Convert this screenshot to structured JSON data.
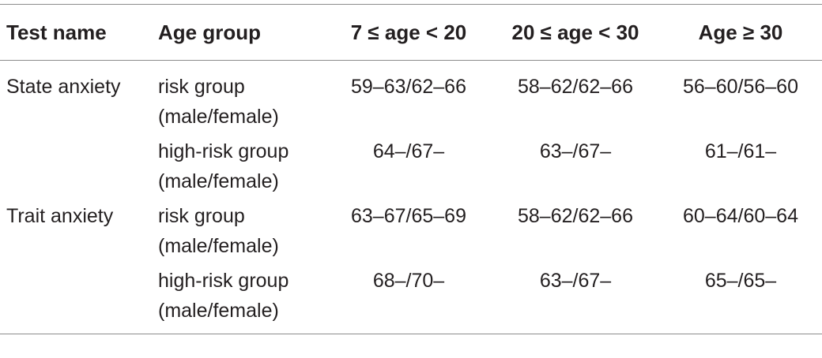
{
  "table": {
    "headers": [
      "Test name",
      "Age group",
      "7 ≤ age < 20",
      "20 ≤ age < 30",
      "Age ≥ 30"
    ],
    "rows": [
      {
        "test_name": "State anxiety",
        "group_line1": "risk group",
        "group_line2": "(male/female)",
        "v1": "59–63/62–66",
        "v2": "58–62/62–66",
        "v3": "56–60/56–60"
      },
      {
        "test_name": "",
        "group_line1": "high-risk group",
        "group_line2": "(male/female)",
        "v1": "64–/67–",
        "v2": "63–/67–",
        "v3": "61–/61–"
      },
      {
        "test_name": "Trait anxiety",
        "group_line1": "risk group",
        "group_line2": "(male/female)",
        "v1": "63–67/65–69",
        "v2": "58–62/62–66",
        "v3": "60–64/60–64"
      },
      {
        "test_name": "",
        "group_line1": "high-risk group",
        "group_line2": "(male/female)",
        "v1": "68–/70–",
        "v2": "63–/67–",
        "v3": "65–/65–"
      }
    ]
  }
}
